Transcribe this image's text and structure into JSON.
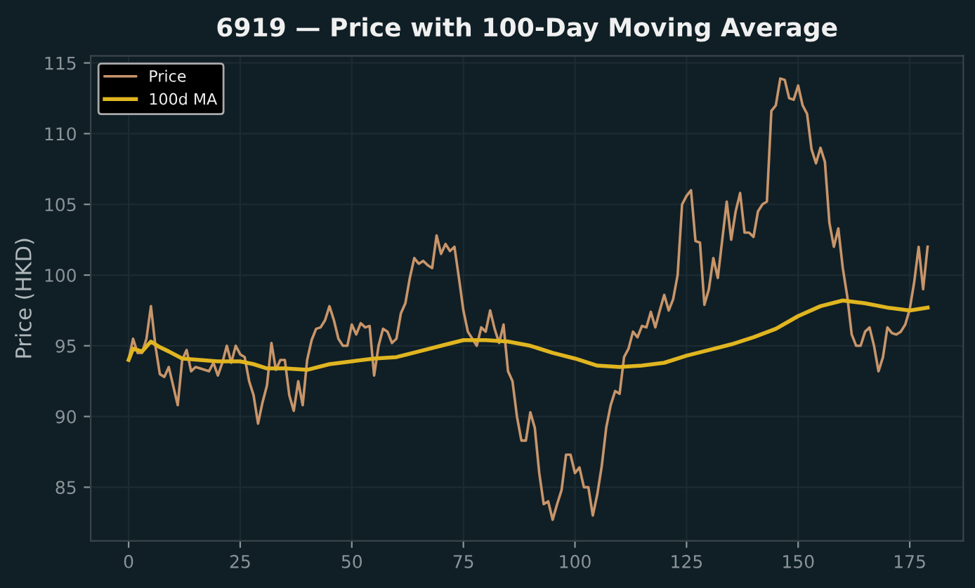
{
  "chart_data": {
    "type": "line",
    "title": "6919 — Price with 100-Day Moving Average",
    "ylabel": "Price (HKD)",
    "xlim": [
      -8.5,
      187
    ],
    "ylim": [
      81.2,
      115.5
    ],
    "xticks": [
      0,
      25,
      50,
      75,
      100,
      125,
      150,
      175
    ],
    "yticks": [
      85,
      90,
      95,
      100,
      105,
      110,
      115
    ],
    "grid": true,
    "legend": "top left",
    "series": [
      {
        "name": "Price",
        "color": "#c8956a",
        "x": [
          0,
          1,
          2,
          3,
          4,
          5,
          6,
          7,
          8,
          9,
          11,
          12,
          13,
          14,
          15,
          17,
          18,
          19,
          20,
          21,
          22,
          23,
          24,
          25,
          26,
          27,
          28,
          29,
          30,
          31,
          32,
          33,
          34,
          35,
          36,
          37,
          38,
          39,
          40,
          41,
          42,
          43,
          44,
          45,
          46,
          47,
          48,
          49,
          50,
          51,
          52,
          53,
          54,
          55,
          56,
          57,
          58,
          59,
          60,
          61,
          62,
          63,
          64,
          65,
          66,
          67,
          68,
          69,
          70,
          71,
          72,
          73,
          74,
          75,
          76,
          77,
          78,
          79,
          80,
          81,
          82,
          83,
          84,
          85,
          86,
          87,
          88,
          89,
          90,
          91,
          92,
          93,
          94,
          95,
          96,
          97,
          98,
          99,
          100,
          101,
          102,
          103,
          104,
          105,
          106,
          107,
          108,
          109,
          110,
          111,
          112,
          113,
          114,
          115,
          116,
          117,
          118,
          119,
          120,
          121,
          122,
          123,
          124,
          125,
          126,
          127,
          128,
          129,
          130,
          131,
          132,
          133,
          134,
          135,
          136,
          137,
          138,
          139,
          140,
          141,
          142,
          143,
          144,
          145,
          146,
          147,
          148,
          149,
          150,
          151,
          152,
          153,
          154,
          155,
          156,
          157,
          158,
          159,
          160,
          161,
          162,
          163,
          164,
          165,
          166,
          167,
          168,
          169,
          170,
          171,
          172,
          173,
          174,
          175,
          176,
          177,
          178,
          179
        ],
        "values": [
          94,
          95.5,
          94.5,
          94.5,
          95.5,
          97.8,
          95,
          93,
          92.8,
          93.5,
          90.8,
          94,
          94.7,
          93.2,
          93.5,
          93.3,
          93.2,
          93.8,
          92.9,
          93.8,
          95,
          93.8,
          95,
          94.4,
          94.2,
          92.5,
          91.5,
          89.5,
          91,
          92.2,
          95.2,
          93.3,
          94,
          94,
          91.5,
          90.4,
          92.5,
          90.8,
          94,
          95.4,
          96.2,
          96.3,
          96.8,
          97.8,
          96.8,
          95.5,
          95,
          95,
          96.5,
          95.8,
          96.6,
          96.3,
          96.4,
          92.9,
          95,
          96.2,
          96,
          95.2,
          95.5,
          97.3,
          98,
          99.8,
          101.2,
          100.8,
          101,
          100.7,
          100.5,
          102.8,
          101.5,
          102.2,
          101.7,
          102,
          99.8,
          97.5,
          96,
          95.5,
          95,
          96.3,
          96,
          97.5,
          96.2,
          95.2,
          96.5,
          93.2,
          92.5,
          90,
          88.3,
          88.3,
          90.3,
          89.2,
          86,
          83.8,
          84,
          82.7,
          83.8,
          84.8,
          87.3,
          87.3,
          86,
          86.4,
          85,
          85,
          83,
          84.5,
          86.5,
          89.2,
          90.8,
          91.8,
          91.6,
          94.2,
          94.8,
          96,
          95.6,
          96.4,
          96.3,
          97.4,
          96.3,
          97.5,
          98.6,
          97.5,
          98.3,
          100,
          105,
          105.6,
          106,
          102.4,
          102.3,
          97.9,
          99,
          101.2,
          99.8,
          102.5,
          105.2,
          102.5,
          104.5,
          105.8,
          103,
          103,
          102.7,
          104.5,
          105,
          105.2,
          111.6,
          112,
          113.9,
          113.8,
          112.5,
          112.4,
          113.4,
          112,
          111.4,
          108.9,
          107.9,
          109,
          108,
          103.7,
          102,
          103.3,
          100.5,
          98.5,
          95.8,
          95,
          95,
          96,
          96.3,
          95,
          93.2,
          94.2,
          96.3,
          95.9,
          95.8,
          96,
          96.5,
          97.6,
          99.5,
          102,
          99,
          102
        ]
      },
      {
        "name": "100d MA",
        "color": "#e0b520",
        "x": [
          0,
          1,
          3,
          5,
          7,
          9,
          12,
          20,
          25,
          28,
          31,
          35,
          40,
          45,
          50,
          55,
          60,
          65,
          70,
          75,
          80,
          85,
          90,
          95,
          100,
          105,
          110,
          115,
          120,
          125,
          130,
          135,
          140,
          145,
          150,
          155,
          160,
          165,
          170,
          175,
          179
        ],
        "values": [
          94,
          94.8,
          94.6,
          95.3,
          94.9,
          94.6,
          94.1,
          93.9,
          93.9,
          93.7,
          93.4,
          93.4,
          93.3,
          93.7,
          93.9,
          94.1,
          94.2,
          94.6,
          95,
          95.4,
          95.4,
          95.3,
          95,
          94.5,
          94.1,
          93.6,
          93.5,
          93.6,
          93.8,
          94.3,
          94.7,
          95.1,
          95.6,
          96.2,
          97.1,
          97.8,
          98.2,
          98,
          97.7,
          97.5,
          97.7
        ]
      }
    ]
  }
}
